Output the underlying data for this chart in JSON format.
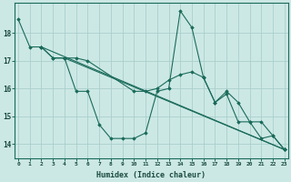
{
  "background_color": "#cce8e5",
  "grid_color": "#aacfcc",
  "line_color": "#1a6b5a",
  "series": [
    {
      "x": [
        0,
        1,
        2,
        3,
        4,
        5,
        6,
        7,
        8,
        9,
        10,
        11,
        12,
        13,
        14,
        15,
        16,
        17,
        18,
        19,
        20,
        21,
        22,
        23
      ],
      "y": [
        18.5,
        17.5,
        17.5,
        17.1,
        17.1,
        15.9,
        15.9,
        14.7,
        14.2,
        14.2,
        14.2,
        14.4,
        15.9,
        16.0,
        18.8,
        18.2,
        16.4,
        15.5,
        15.8,
        14.8,
        14.8,
        14.2,
        14.3,
        13.8
      ]
    },
    {
      "x": [
        2,
        23
      ],
      "y": [
        17.5,
        13.8
      ]
    },
    {
      "x": [
        4,
        23
      ],
      "y": [
        17.1,
        13.8
      ]
    },
    {
      "x": [
        2,
        3,
        4,
        5,
        6,
        10,
        11,
        12,
        13,
        14,
        15,
        16,
        17,
        18,
        19,
        20,
        21,
        22,
        23
      ],
      "y": [
        17.5,
        17.1,
        17.1,
        17.1,
        17.0,
        15.9,
        15.9,
        16.0,
        16.3,
        16.5,
        16.6,
        16.4,
        15.5,
        15.9,
        15.5,
        14.8,
        14.8,
        14.3,
        13.8
      ]
    }
  ],
  "xlabel": "Humidex (Indice chaleur)",
  "xlim": [
    -0.3,
    23.3
  ],
  "ylim": [
    13.5,
    19.1
  ],
  "yticks": [
    14,
    15,
    16,
    17,
    18
  ],
  "xticks": [
    0,
    1,
    2,
    3,
    4,
    5,
    6,
    7,
    8,
    9,
    10,
    11,
    12,
    13,
    14,
    15,
    16,
    17,
    18,
    19,
    20,
    21,
    22,
    23
  ],
  "xtick_labels": [
    "0",
    "1",
    "2",
    "3",
    "4",
    "5",
    "6",
    "7",
    "8",
    "9",
    "10",
    "11",
    "12",
    "13",
    "14",
    "15",
    "16",
    "17",
    "18",
    "19",
    "20",
    "21",
    "22",
    "23"
  ]
}
